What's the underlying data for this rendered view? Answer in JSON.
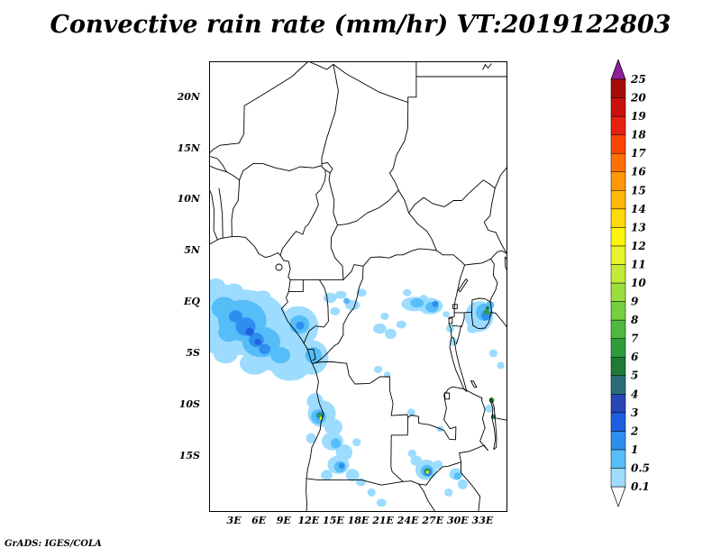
{
  "title": "Convective rain rate (mm/hr) VT:2019122803",
  "attribution": "GrADS: IGES/COLA",
  "chart_data": {
    "type": "heatmap",
    "title": "Convective rain rate (mm/hr)",
    "valid_time": "VT:2019122803",
    "units": "mm/hr",
    "map_region": {
      "lon_range": [
        0,
        36
      ],
      "lat_range": [
        -20.5,
        23.5
      ]
    },
    "lat_ticks": [
      {
        "label": "20N",
        "value": 20
      },
      {
        "label": "15N",
        "value": 15
      },
      {
        "label": "10N",
        "value": 10
      },
      {
        "label": "5N",
        "value": 5
      },
      {
        "label": "EQ",
        "value": 0
      },
      {
        "label": "5S",
        "value": -5
      },
      {
        "label": "10S",
        "value": -10
      },
      {
        "label": "15S",
        "value": -15
      }
    ],
    "lon_ticks": [
      {
        "label": "3E",
        "value": 3
      },
      {
        "label": "6E",
        "value": 6
      },
      {
        "label": "9E",
        "value": 9
      },
      {
        "label": "12E",
        "value": 12
      },
      {
        "label": "15E",
        "value": 15
      },
      {
        "label": "18E",
        "value": 18
      },
      {
        "label": "21E",
        "value": 21
      },
      {
        "label": "24E",
        "value": 24
      },
      {
        "label": "27E",
        "value": 27
      },
      {
        "label": "30E",
        "value": 30
      },
      {
        "label": "33E",
        "value": 33
      }
    ],
    "colorbar": {
      "levels": [
        0.1,
        0.5,
        1,
        2,
        3,
        4,
        5,
        6,
        7,
        8,
        9,
        10,
        11,
        12,
        13,
        14,
        15,
        16,
        17,
        18,
        19,
        20,
        25
      ],
      "labels": [
        "0.1",
        "0.5",
        "1",
        "2",
        "3",
        "4",
        "5",
        "6",
        "7",
        "8",
        "9",
        "10",
        "11",
        "12",
        "13",
        "14",
        "15",
        "16",
        "17",
        "18",
        "19",
        "20",
        "25"
      ],
      "band_colors": [
        "#ffffff",
        "#9ddcff",
        "#55bdf7",
        "#2e8ef0",
        "#1f5fe0",
        "#2746b4",
        "#2a6d74",
        "#1f7a35",
        "#2f9c3c",
        "#4fb83e",
        "#74cf3f",
        "#9ade3e",
        "#c3ea38",
        "#e8f32b",
        "#fdf50c",
        "#ffd90a",
        "#ffb709",
        "#ff9507",
        "#ff7005",
        "#fb4503",
        "#e82010",
        "#cc0f0f",
        "#a50b0b",
        "#8f1d96"
      ]
    },
    "cells_format": [
      "lon_deg_east",
      "lat_deg_north",
      "rx_deg",
      "ry_deg",
      "rain_rate_mm_hr"
    ],
    "cells": [
      [
        4.2,
        -2.0,
        5.3,
        3.2,
        0.3
      ],
      [
        1.3,
        -0.1,
        2.6,
        1.9,
        0.3
      ],
      [
        7.8,
        -4.3,
        3.6,
        2.4,
        0.3
      ],
      [
        10.8,
        -2.4,
        2.4,
        2.0,
        0.3
      ],
      [
        12.4,
        -5.4,
        2.0,
        1.7,
        0.3
      ],
      [
        9.8,
        -6.3,
        2.4,
        1.4,
        0.3
      ],
      [
        0.8,
        1.5,
        1.2,
        0.8,
        0.3
      ],
      [
        3.0,
        1.1,
        1.1,
        0.7,
        0.3
      ],
      [
        6.5,
        0.6,
        0.9,
        0.5,
        0.3
      ],
      [
        0.6,
        -4.2,
        1.2,
        0.8,
        0.3
      ],
      [
        2.0,
        -5.0,
        1.5,
        1.0,
        0.3
      ],
      [
        5.5,
        -6.0,
        1.8,
        1.1,
        0.3
      ],
      [
        14.6,
        0.4,
        0.8,
        0.5,
        0.3
      ],
      [
        15.9,
        0.7,
        0.7,
        0.4,
        0.3
      ],
      [
        17.3,
        -0.3,
        0.9,
        0.5,
        0.3
      ],
      [
        18.4,
        0.9,
        0.6,
        0.4,
        0.3
      ],
      [
        15.2,
        -0.9,
        0.6,
        0.4,
        0.3
      ],
      [
        20.6,
        -2.6,
        0.8,
        0.5,
        0.3
      ],
      [
        21.9,
        -3.1,
        0.7,
        0.5,
        0.3
      ],
      [
        23.2,
        -2.2,
        0.6,
        0.4,
        0.3
      ],
      [
        21.2,
        -1.4,
        0.5,
        0.35,
        0.3
      ],
      [
        20.4,
        -6.6,
        0.5,
        0.35,
        0.3
      ],
      [
        21.5,
        -7.1,
        0.4,
        0.3,
        0.3
      ],
      [
        24.8,
        -0.2,
        1.6,
        0.7,
        0.3
      ],
      [
        26.7,
        -0.4,
        1.5,
        0.8,
        0.3
      ],
      [
        23.9,
        0.9,
        0.5,
        0.35,
        0.3
      ],
      [
        25.9,
        0.4,
        0.5,
        0.3,
        0.3
      ],
      [
        32.6,
        -1.4,
        1.7,
        1.5,
        0.3
      ],
      [
        31.8,
        -2.6,
        0.7,
        0.45,
        0.3
      ],
      [
        29.1,
        -2.6,
        0.5,
        0.4,
        0.3
      ],
      [
        29.5,
        -3.9,
        0.5,
        0.4,
        0.3
      ],
      [
        28.6,
        -1.2,
        0.4,
        0.3,
        0.3
      ],
      [
        34.3,
        -5.0,
        0.5,
        0.4,
        0.3
      ],
      [
        35.2,
        -6.2,
        0.45,
        0.35,
        0.3
      ],
      [
        13.6,
        -10.9,
        1.7,
        1.3,
        0.3
      ],
      [
        12.8,
        -9.7,
        1.0,
        0.8,
        0.3
      ],
      [
        15.0,
        -12.2,
        1.1,
        0.8,
        0.3
      ],
      [
        14.9,
        -13.6,
        1.3,
        0.9,
        0.3
      ],
      [
        16.3,
        -14.7,
        1.0,
        0.8,
        0.3
      ],
      [
        15.6,
        -15.9,
        1.3,
        0.9,
        0.3
      ],
      [
        17.3,
        -16.9,
        0.8,
        0.6,
        0.3
      ],
      [
        14.2,
        -16.9,
        0.7,
        0.5,
        0.3
      ],
      [
        18.3,
        -17.6,
        0.6,
        0.4,
        0.3
      ],
      [
        19.6,
        -18.6,
        0.5,
        0.4,
        0.3
      ],
      [
        12.3,
        -13.3,
        0.6,
        0.5,
        0.3
      ],
      [
        17.8,
        -13.7,
        0.5,
        0.4,
        0.3
      ],
      [
        20.8,
        -19.6,
        0.6,
        0.4,
        0.3
      ],
      [
        26.2,
        -16.4,
        1.3,
        1.0,
        0.3
      ],
      [
        25.0,
        -15.5,
        0.7,
        0.5,
        0.3
      ],
      [
        27.6,
        -15.9,
        0.6,
        0.45,
        0.3
      ],
      [
        24.5,
        -14.8,
        0.5,
        0.4,
        0.3
      ],
      [
        24.4,
        -10.8,
        0.5,
        0.4,
        0.3
      ],
      [
        27.9,
        -12.4,
        0.4,
        0.3,
        0.3
      ],
      [
        29.8,
        -16.8,
        0.8,
        0.6,
        0.3
      ],
      [
        30.6,
        -17.8,
        0.6,
        0.5,
        0.3
      ],
      [
        28.9,
        -18.6,
        0.5,
        0.4,
        0.3
      ],
      [
        33.8,
        -10.4,
        0.5,
        0.4,
        0.3
      ],
      [
        4.0,
        -1.8,
        2.9,
        2.0,
        0.7
      ],
      [
        6.3,
        -3.9,
        2.3,
        1.5,
        0.7
      ],
      [
        1.8,
        -0.6,
        1.5,
        1.1,
        0.7
      ],
      [
        10.9,
        -2.2,
        1.2,
        0.9,
        0.7
      ],
      [
        12.6,
        -5.2,
        1.0,
        0.8,
        0.7
      ],
      [
        8.6,
        -5.2,
        1.2,
        0.8,
        0.7
      ],
      [
        2.4,
        -3.0,
        1.3,
        0.9,
        0.7
      ],
      [
        16.6,
        0.1,
        0.4,
        0.3,
        0.7
      ],
      [
        25.1,
        -0.1,
        0.8,
        0.45,
        0.7
      ],
      [
        26.9,
        -0.5,
        0.8,
        0.5,
        0.7
      ],
      [
        33.2,
        -1.0,
        1.0,
        0.85,
        0.7
      ],
      [
        33.9,
        -0.3,
        0.5,
        0.4,
        0.7
      ],
      [
        13.2,
        -11.2,
        0.9,
        0.7,
        0.7
      ],
      [
        15.3,
        -13.8,
        0.6,
        0.5,
        0.7
      ],
      [
        15.8,
        -16.1,
        0.7,
        0.55,
        0.7
      ],
      [
        26.3,
        -16.5,
        0.75,
        0.6,
        0.7
      ],
      [
        30.0,
        -17.0,
        0.45,
        0.35,
        0.7
      ],
      [
        4.4,
        -2.4,
        1.2,
        0.9,
        1.5
      ],
      [
        5.7,
        -3.7,
        0.9,
        0.7,
        1.5
      ],
      [
        3.2,
        -1.4,
        0.8,
        0.6,
        1.5
      ],
      [
        6.7,
        -4.6,
        0.7,
        0.5,
        1.5
      ],
      [
        11.0,
        -2.3,
        0.5,
        0.4,
        1.5
      ],
      [
        27.3,
        -0.2,
        0.4,
        0.3,
        1.5
      ],
      [
        33.4,
        -1.3,
        0.55,
        0.5,
        1.5
      ],
      [
        13.4,
        -11.1,
        0.5,
        0.4,
        1.5
      ],
      [
        16.0,
        -16.0,
        0.35,
        0.3,
        1.5
      ],
      [
        26.4,
        -16.6,
        0.5,
        0.4,
        1.5
      ],
      [
        4.9,
        -2.9,
        0.5,
        0.4,
        2.5
      ],
      [
        5.9,
        -3.9,
        0.4,
        0.3,
        2.5
      ],
      [
        33.6,
        -0.6,
        0.22,
        0.2,
        4.5
      ],
      [
        34.3,
        -11.2,
        0.28,
        0.24,
        4.5
      ],
      [
        33.5,
        -1.0,
        0.3,
        0.28,
        6.5
      ],
      [
        13.35,
        -11.05,
        0.28,
        0.24,
        6.5
      ],
      [
        26.3,
        -16.5,
        0.3,
        0.25,
        6.5
      ],
      [
        34.1,
        -9.6,
        0.32,
        0.28,
        6.5
      ],
      [
        13.5,
        -11.35,
        0.17,
        0.15,
        12.5
      ],
      [
        26.35,
        -16.62,
        0.16,
        0.14,
        12.5
      ]
    ]
  }
}
